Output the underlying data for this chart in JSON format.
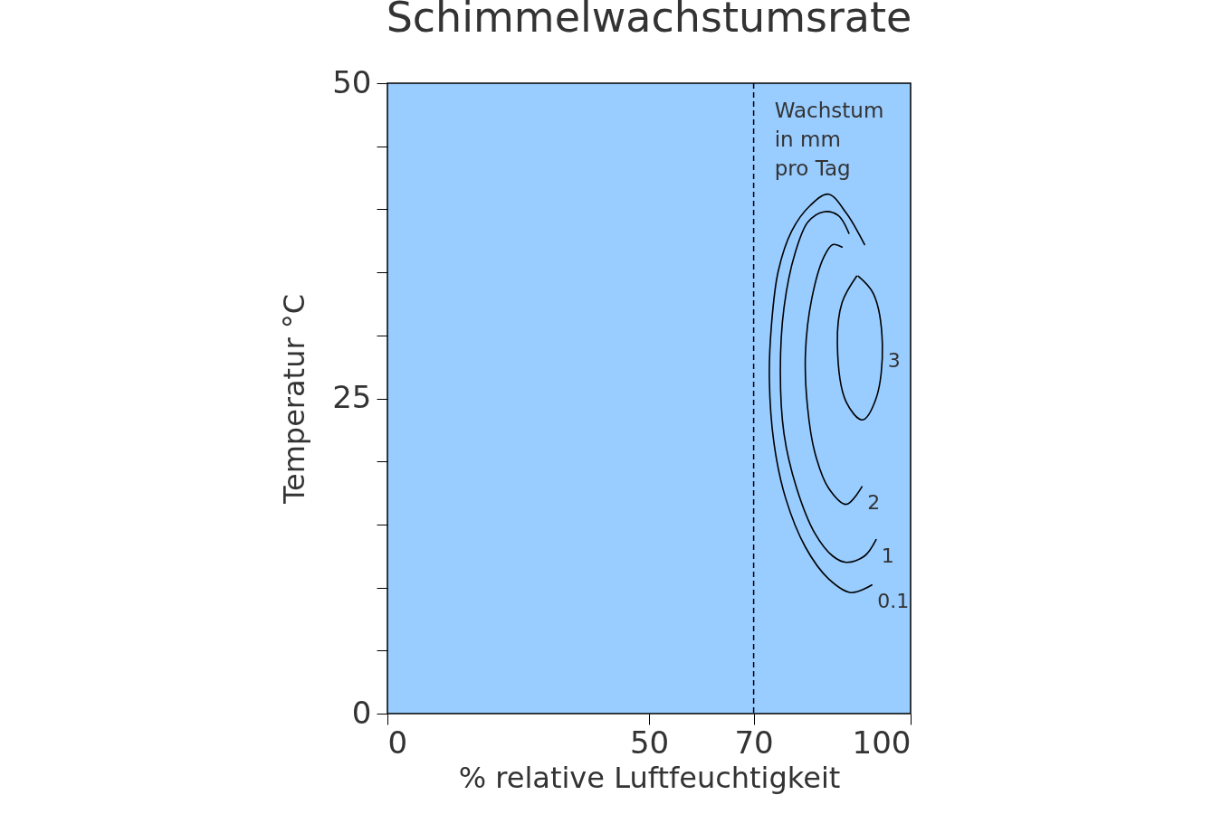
{
  "chart_data": {
    "type": "line",
    "title": "Schimmelwachstumsrate",
    "xlabel": "% relative Luftfeuchtigkeit",
    "ylabel": "Temperatur °C",
    "annotations": [
      "Wachstum\nin mm\npro Tag"
    ],
    "xlim": [
      0,
      100
    ],
    "xticks": [
      0,
      50,
      70,
      100
    ],
    "ylim": [
      0,
      50
    ],
    "yticks": [
      0,
      {
        "value": 5,
        "label": null
      },
      {
        "value": 10,
        "label": null
      },
      {
        "value": 15,
        "label": null
      },
      {
        "value": 20,
        "label": null
      },
      25,
      {
        "value": 30,
        "label": null
      },
      {
        "value": 35,
        "label": null
      },
      {
        "value": 40,
        "label": null
      },
      {
        "value": 45,
        "label": null
      },
      50
    ],
    "grid": false,
    "legend": false,
    "ref_lines": [
      {
        "axis": "x",
        "value": 70,
        "color": "#000000",
        "line_style": "dashed"
      }
    ],
    "series": [
      {
        "name": "0.1",
        "color": "#000000",
        "x": [
          91.2,
          87.7,
          84.3,
          80.8,
          77.3,
          74.7,
          73.4,
          73.0,
          73.9,
          76.1,
          79.9,
          84.3,
          88.6,
          92.6
        ],
        "values": [
          37.2,
          39.7,
          41.2,
          40.3,
          38.3,
          35.1,
          30.8,
          26.5,
          21.4,
          17.1,
          13.2,
          10.7,
          9.6,
          10.2
        ]
      },
      {
        "name": "1",
        "color": "#000000",
        "x": [
          88.2,
          86.2,
          83.4,
          80.4,
          77.9,
          75.8,
          75.1,
          75.8,
          78.2,
          81.7,
          85.1,
          87.7,
          91.2,
          93.4
        ],
        "values": [
          38.1,
          39.5,
          39.8,
          39.0,
          36.5,
          32.2,
          27.2,
          22.2,
          17.9,
          14.3,
          12.5,
          12.0,
          12.5,
          13.8
        ]
      },
      {
        "name": "2",
        "color": "#000000",
        "x": [
          86.9,
          85.1,
          83.4,
          81.1,
          79.9,
          80.3,
          81.7,
          84.3,
          87.7,
          90.7
        ],
        "values": [
          37.0,
          37.2,
          36.2,
          32.9,
          28.6,
          24.3,
          20.7,
          17.9,
          16.6,
          18.0
        ]
      },
      {
        "name": "3",
        "color": "#000000",
        "x": [
          90.0,
          92.9,
          94.6,
          93.4,
          90.8,
          87.7,
          86.0,
          86.9,
          89.7
        ],
        "values": [
          34.7,
          33.3,
          29.3,
          25.0,
          23.3,
          24.7,
          29.3,
          32.6,
          34.7
        ]
      }
    ]
  }
}
